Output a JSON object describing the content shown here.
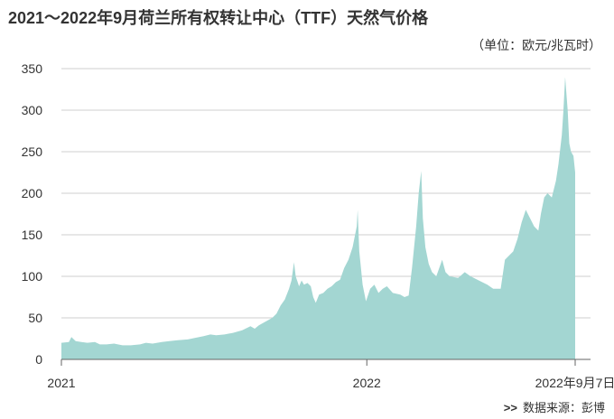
{
  "title": "2021～2022年9月荷兰所有权转让中心（TTF）天然气价格",
  "unit_label": "（单位：欧元/兆瓦时）",
  "source": {
    "arrow": ">>",
    "text": "数据来源：彭博"
  },
  "chart_data": {
    "type": "area",
    "color": "#a3d6d2",
    "grid": "horizontal",
    "ylim": [
      0,
      350
    ],
    "yticks": [
      0,
      50,
      100,
      150,
      200,
      250,
      300,
      350
    ],
    "xlim": [
      "2021-01-01",
      "2022-09-07"
    ],
    "xticks": [
      {
        "date": "2021-01-01",
        "label": "2021"
      },
      {
        "date": "2022-01-01",
        "label": "2022"
      },
      {
        "date": "2022-09-07",
        "label": "2022年9月7日"
      }
    ],
    "series": [
      {
        "points": [
          [
            "2021-01-01",
            20
          ],
          [
            "2021-01-10",
            21
          ],
          [
            "2021-01-13",
            27
          ],
          [
            "2021-01-18",
            22
          ],
          [
            "2021-01-25",
            21
          ],
          [
            "2021-02-01",
            20
          ],
          [
            "2021-02-10",
            21
          ],
          [
            "2021-02-16",
            18
          ],
          [
            "2021-02-24",
            18
          ],
          [
            "2021-03-05",
            19
          ],
          [
            "2021-03-15",
            17
          ],
          [
            "2021-03-25",
            17
          ],
          [
            "2021-04-05",
            18
          ],
          [
            "2021-04-12",
            20
          ],
          [
            "2021-04-20",
            19
          ],
          [
            "2021-05-01",
            21
          ],
          [
            "2021-05-10",
            22
          ],
          [
            "2021-05-20",
            23
          ],
          [
            "2021-06-01",
            24
          ],
          [
            "2021-06-10",
            26
          ],
          [
            "2021-06-20",
            28
          ],
          [
            "2021-06-28",
            30
          ],
          [
            "2021-07-05",
            29
          ],
          [
            "2021-07-15",
            30
          ],
          [
            "2021-07-25",
            32
          ],
          [
            "2021-08-05",
            35
          ],
          [
            "2021-08-15",
            40
          ],
          [
            "2021-08-20",
            37
          ],
          [
            "2021-08-25",
            41
          ],
          [
            "2021-09-01",
            45
          ],
          [
            "2021-09-10",
            50
          ],
          [
            "2021-09-15",
            55
          ],
          [
            "2021-09-20",
            65
          ],
          [
            "2021-09-25",
            72
          ],
          [
            "2021-09-30",
            85
          ],
          [
            "2021-10-03",
            95
          ],
          [
            "2021-10-06",
            117
          ],
          [
            "2021-10-08",
            100
          ],
          [
            "2021-10-12",
            88
          ],
          [
            "2021-10-15",
            95
          ],
          [
            "2021-10-18",
            90
          ],
          [
            "2021-10-22",
            92
          ],
          [
            "2021-10-26",
            88
          ],
          [
            "2021-10-29",
            75
          ],
          [
            "2021-11-01",
            68
          ],
          [
            "2021-11-05",
            78
          ],
          [
            "2021-11-10",
            80
          ],
          [
            "2021-11-15",
            85
          ],
          [
            "2021-11-20",
            88
          ],
          [
            "2021-11-25",
            93
          ],
          [
            "2021-11-30",
            96
          ],
          [
            "2021-12-05",
            110
          ],
          [
            "2021-12-10",
            120
          ],
          [
            "2021-12-15",
            135
          ],
          [
            "2021-12-20",
            160
          ],
          [
            "2021-12-21",
            180
          ],
          [
            "2021-12-23",
            130
          ],
          [
            "2021-12-27",
            90
          ],
          [
            "2021-12-31",
            70
          ],
          [
            "2022-01-05",
            85
          ],
          [
            "2022-01-10",
            90
          ],
          [
            "2022-01-15",
            80
          ],
          [
            "2022-01-20",
            85
          ],
          [
            "2022-01-25",
            88
          ],
          [
            "2022-02-01",
            80
          ],
          [
            "2022-02-10",
            78
          ],
          [
            "2022-02-15",
            75
          ],
          [
            "2022-02-20",
            77
          ],
          [
            "2022-02-24",
            110
          ],
          [
            "2022-03-01",
            160
          ],
          [
            "2022-03-04",
            200
          ],
          [
            "2022-03-07",
            227
          ],
          [
            "2022-03-09",
            170
          ],
          [
            "2022-03-12",
            135
          ],
          [
            "2022-03-16",
            115
          ],
          [
            "2022-03-20",
            105
          ],
          [
            "2022-03-25",
            100
          ],
          [
            "2022-04-01",
            120
          ],
          [
            "2022-04-05",
            105
          ],
          [
            "2022-04-10",
            100
          ],
          [
            "2022-04-20",
            98
          ],
          [
            "2022-04-28",
            105
          ],
          [
            "2022-05-05",
            100
          ],
          [
            "2022-05-15",
            95
          ],
          [
            "2022-05-25",
            90
          ],
          [
            "2022-06-01",
            85
          ],
          [
            "2022-06-10",
            85
          ],
          [
            "2022-06-15",
            120
          ],
          [
            "2022-06-20",
            125
          ],
          [
            "2022-06-25",
            130
          ],
          [
            "2022-06-30",
            145
          ],
          [
            "2022-07-05",
            165
          ],
          [
            "2022-07-10",
            180
          ],
          [
            "2022-07-15",
            170
          ],
          [
            "2022-07-20",
            160
          ],
          [
            "2022-07-25",
            155
          ],
          [
            "2022-07-28",
            175
          ],
          [
            "2022-08-01",
            195
          ],
          [
            "2022-08-05",
            200
          ],
          [
            "2022-08-10",
            195
          ],
          [
            "2022-08-15",
            215
          ],
          [
            "2022-08-18",
            235
          ],
          [
            "2022-08-22",
            270
          ],
          [
            "2022-08-24",
            300
          ],
          [
            "2022-08-26",
            340
          ],
          [
            "2022-08-29",
            300
          ],
          [
            "2022-08-31",
            260
          ],
          [
            "2022-09-02",
            250
          ],
          [
            "2022-09-05",
            245
          ],
          [
            "2022-09-07",
            225
          ]
        ]
      }
    ]
  }
}
